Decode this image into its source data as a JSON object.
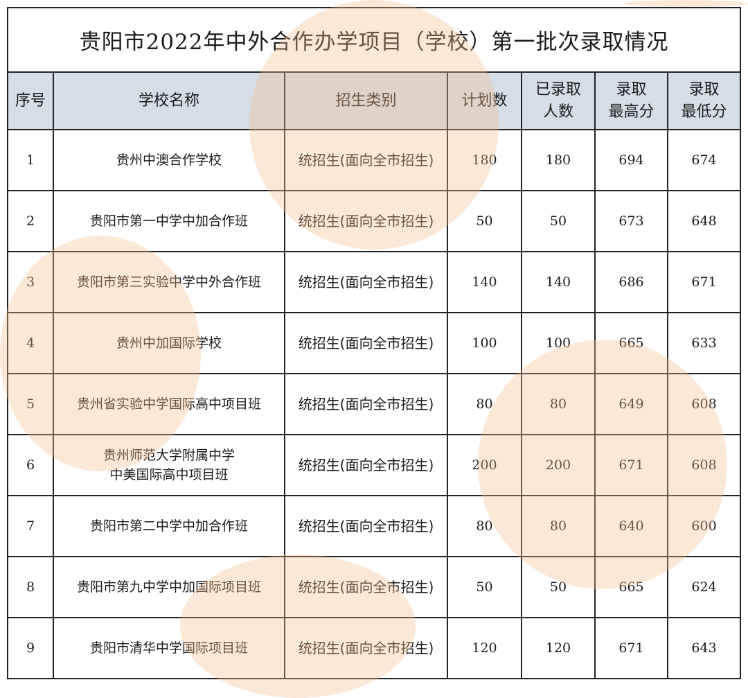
{
  "title": "贵阳市2022年中外合作办学项目（学校）第一批次录取情况",
  "headers": {
    "index": "序号",
    "school": "学校名称",
    "category": "招生类别",
    "plan": "计划数",
    "admitted": [
      "已录取",
      "人数"
    ],
    "max": [
      "录取",
      "最高分"
    ],
    "min": [
      "录取",
      "最低分"
    ]
  },
  "rows": [
    {
      "no": "1",
      "school": [
        "贵州中澳合作学校"
      ],
      "category": "统招生(面向全市招生)",
      "plan": "180",
      "admitted": "180",
      "max": "694",
      "min": "674"
    },
    {
      "no": "2",
      "school": [
        "贵阳市第一中学中加合作班"
      ],
      "category": "统招生(面向全市招生)",
      "plan": "50",
      "admitted": "50",
      "max": "673",
      "min": "648"
    },
    {
      "no": "3",
      "school": [
        "贵阳市第三实验中学中外合作班"
      ],
      "category": "统招生(面向全市招生)",
      "plan": "140",
      "admitted": "140",
      "max": "686",
      "min": "671"
    },
    {
      "no": "4",
      "school": [
        "贵州中加国际学校"
      ],
      "category": "统招生(面向全市招生)",
      "plan": "100",
      "admitted": "100",
      "max": "665",
      "min": "633"
    },
    {
      "no": "5",
      "school": [
        "贵州省实验中学国际高中项目班"
      ],
      "category": "统招生(面向全市招生)",
      "plan": "80",
      "admitted": "80",
      "max": "649",
      "min": "608"
    },
    {
      "no": "6",
      "school": [
        "贵州师范大学附属中学",
        "中美国际高中项目班"
      ],
      "category": "统招生(面向全市招生)",
      "plan": "200",
      "admitted": "200",
      "max": "671",
      "min": "608"
    },
    {
      "no": "7",
      "school": [
        "贵阳市第二中学中加合作班"
      ],
      "category": "统招生(面向全市招生)",
      "plan": "80",
      "admitted": "80",
      "max": "640",
      "min": "600"
    },
    {
      "no": "8",
      "school": [
        "贵阳市第九中学中加国际项目班"
      ],
      "category": "统招生(面向全市招生)",
      "plan": "50",
      "admitted": "50",
      "max": "665",
      "min": "624"
    },
    {
      "no": "9",
      "school": [
        "贵阳市清华中学国际项目班"
      ],
      "category": "统招生(面向全市招生)",
      "plan": "120",
      "admitted": "120",
      "max": "671",
      "min": "643"
    }
  ],
  "colors": {
    "header_bg": "#d5dde6",
    "border": "#222222",
    "watermark": "#f7be8c"
  }
}
